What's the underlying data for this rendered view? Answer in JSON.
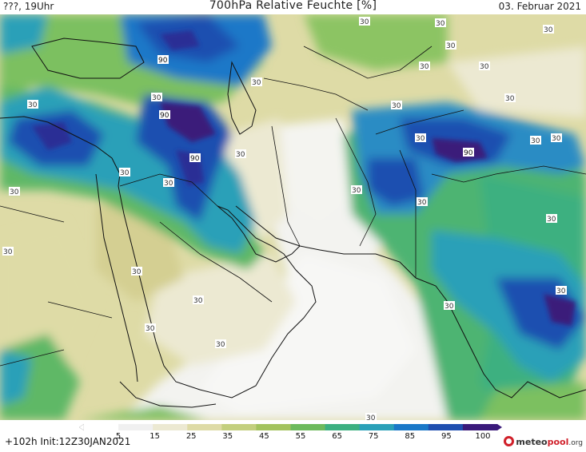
{
  "header": {
    "left": "???, 19Uhr",
    "title": "700hPa Relative Feuchte [%]",
    "right": "03. Februar 2021"
  },
  "footer": {
    "forecast": "+102h  Init:12Z30JAN2021",
    "logo_main": "meteo",
    "logo_accent": "pool",
    "logo_tld": ".org"
  },
  "colorbar": {
    "labels": [
      "5",
      "15",
      "25",
      "35",
      "45",
      "55",
      "65",
      "75",
      "85",
      "95",
      "100"
    ],
    "colors": [
      "#ffffff",
      "#f0f0f0",
      "#ece9d2",
      "#dedba6",
      "#c3cf7e",
      "#a3c35e",
      "#6dba5c",
      "#3cb080",
      "#2aa0b8",
      "#1a78c8",
      "#1f4fb0",
      "#3a1a7a"
    ]
  },
  "map": {
    "variable": "700hPa relative humidity",
    "contour_labels": [
      "30",
      "30",
      "30",
      "30",
      "30",
      "30",
      "30",
      "30",
      "30",
      "30",
      "30",
      "30",
      "30",
      "30",
      "30",
      "30",
      "30",
      "30",
      "30",
      "30",
      "30",
      "30",
      "30",
      "30",
      "30",
      "30",
      "30",
      "30",
      "30",
      "90",
      "90",
      "90",
      "90"
    ]
  }
}
